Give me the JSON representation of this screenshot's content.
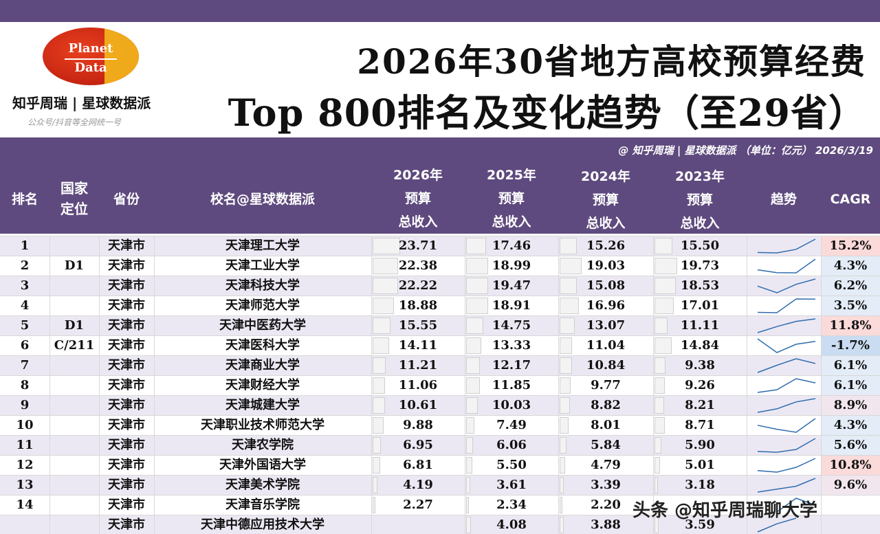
{
  "brand": {
    "logo_line1": "Planet",
    "logo_line2": "Data",
    "name": "知乎周瑞 | 星球数据派",
    "sub": "公众号/抖音等全网统一号"
  },
  "header": {
    "title_line1": "2026年30省地方高校预算经费",
    "title_line2": "Top 800排名及变化趋势（至29省）",
    "credit": "@ 知乎周瑞 | 星球数据派 （单位：亿元） 2026/3/19"
  },
  "columns": {
    "rank": "排名",
    "nat_a": "国家",
    "nat_b": "定位",
    "province": "省份",
    "school": "校名@星球数据派",
    "y2026_a": "2026年",
    "y2026_b": "预算",
    "y2026_c": "总收入",
    "y2025_a": "2025年",
    "y2025_b": "预算",
    "y2025_c": "总收入",
    "y2024_a": "2024年",
    "y2024_b": "预算",
    "y2024_c": "总收入",
    "y2023_a": "2023年",
    "y2023_b": "预算",
    "y2023_c": "总收入",
    "trend": "趋势",
    "cagr": "CAGR"
  },
  "chart_data": {
    "type": "table",
    "title": "2026年30省地方高校预算经费 Top 800排名及变化趋势（至29省）",
    "unit": "亿元",
    "columns": [
      "排名",
      "国家定位",
      "省份",
      "校名@星球数据派",
      "2026年预算总收入",
      "2025年预算总收入",
      "2024年预算总收入",
      "2023年预算总收入",
      "趋势",
      "CAGR"
    ],
    "rows": [
      {
        "rank": "1",
        "nat": "",
        "prov": "天津市",
        "school": "天津理工大学",
        "v2026": "23.71",
        "v2025": "17.46",
        "v2024": "15.26",
        "v2023": "15.50",
        "cagr": "15.2%"
      },
      {
        "rank": "2",
        "nat": "D1",
        "prov": "天津市",
        "school": "天津工业大学",
        "v2026": "22.38",
        "v2025": "18.99",
        "v2024": "19.03",
        "v2023": "19.73",
        "cagr": "4.3%"
      },
      {
        "rank": "3",
        "nat": "",
        "prov": "天津市",
        "school": "天津科技大学",
        "v2026": "22.22",
        "v2025": "19.47",
        "v2024": "15.08",
        "v2023": "18.53",
        "cagr": "6.2%"
      },
      {
        "rank": "4",
        "nat": "",
        "prov": "天津市",
        "school": "天津师范大学",
        "v2026": "18.88",
        "v2025": "18.91",
        "v2024": "16.96",
        "v2023": "17.01",
        "cagr": "3.5%"
      },
      {
        "rank": "5",
        "nat": "D1",
        "prov": "天津市",
        "school": "天津中医药大学",
        "v2026": "15.55",
        "v2025": "14.75",
        "v2024": "13.07",
        "v2023": "11.11",
        "cagr": "11.8%"
      },
      {
        "rank": "6",
        "nat": "C/211",
        "prov": "天津市",
        "school": "天津医科大学",
        "v2026": "14.11",
        "v2025": "13.33",
        "v2024": "11.04",
        "v2023": "14.84",
        "cagr": "-1.7%"
      },
      {
        "rank": "7",
        "nat": "",
        "prov": "天津市",
        "school": "天津商业大学",
        "v2026": "11.21",
        "v2025": "12.17",
        "v2024": "10.84",
        "v2023": "9.38",
        "cagr": "6.1%"
      },
      {
        "rank": "8",
        "nat": "",
        "prov": "天津市",
        "school": "天津财经大学",
        "v2026": "11.06",
        "v2025": "11.85",
        "v2024": "9.77",
        "v2023": "9.26",
        "cagr": "6.1%"
      },
      {
        "rank": "9",
        "nat": "",
        "prov": "天津市",
        "school": "天津城建大学",
        "v2026": "10.61",
        "v2025": "10.03",
        "v2024": "8.82",
        "v2023": "8.21",
        "cagr": "8.9%"
      },
      {
        "rank": "10",
        "nat": "",
        "prov": "天津市",
        "school": "天津职业技术师范大学",
        "v2026": "9.88",
        "v2025": "7.49",
        "v2024": "8.01",
        "v2023": "8.71",
        "cagr": "4.3%"
      },
      {
        "rank": "11",
        "nat": "",
        "prov": "天津市",
        "school": "天津农学院",
        "v2026": "6.95",
        "v2025": "6.06",
        "v2024": "5.84",
        "v2023": "5.90",
        "cagr": "5.6%"
      },
      {
        "rank": "12",
        "nat": "",
        "prov": "天津市",
        "school": "天津外国语大学",
        "v2026": "6.81",
        "v2025": "5.50",
        "v2024": "4.79",
        "v2023": "5.01",
        "cagr": "10.8%"
      },
      {
        "rank": "13",
        "nat": "",
        "prov": "天津市",
        "school": "天津美术学院",
        "v2026": "4.19",
        "v2025": "3.61",
        "v2024": "3.39",
        "v2023": "3.18",
        "cagr": "9.6%"
      },
      {
        "rank": "14",
        "nat": "",
        "prov": "天津市",
        "school": "天津音乐学院",
        "v2026": "2.27",
        "v2025": "2.34",
        "v2024": "2.20",
        "v2023": "",
        "cagr": ""
      },
      {
        "rank": "",
        "nat": "",
        "prov": "天津市",
        "school": "天津中德应用技术大学",
        "v2026": "",
        "v2025": "4.08",
        "v2024": "3.88",
        "v2023": "3.59",
        "cagr": ""
      }
    ]
  },
  "footer_watermark": "头条 @知乎周瑞聊大学",
  "colors": {
    "band": "#5e4a7e",
    "row_alt": "#ece8f3",
    "cagr_high": "#fbdada",
    "cagr_mid": "#e3ecf7",
    "cagr_neg": "#c9dcf1",
    "spark": "#2f6cae"
  }
}
